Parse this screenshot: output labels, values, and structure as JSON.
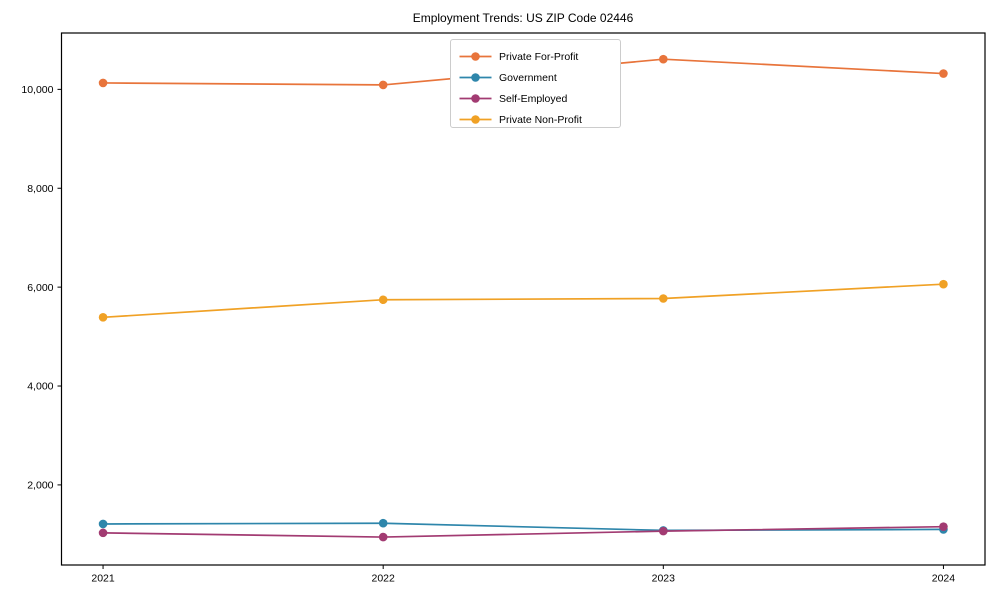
{
  "chart_data": {
    "type": "line",
    "title": "Employment Trends: US ZIP Code 02446",
    "x": [
      "2021",
      "2022",
      "2023",
      "2024"
    ],
    "series": [
      {
        "name": "Private For-Profit",
        "color": "#E8743B",
        "values": [
          10130,
          10090,
          10610,
          10320
        ]
      },
      {
        "name": "Government",
        "color": "#2E86AB",
        "values": [
          1210,
          1225,
          1080,
          1100
        ]
      },
      {
        "name": "Self-Employed",
        "color": "#A23B72",
        "values": [
          1030,
          945,
          1065,
          1155
        ]
      },
      {
        "name": "Private Non-Profit",
        "color": "#F0A125",
        "values": [
          5390,
          5745,
          5770,
          6060
        ]
      }
    ],
    "xlabel": "",
    "ylabel": "",
    "ylim": [
      380,
      11140
    ],
    "yticks": [
      2000,
      4000,
      6000,
      8000,
      10000
    ],
    "grid": false,
    "marker": "circle",
    "legend": {
      "position": "upper center",
      "background": "#ffffff",
      "border_color": "#cccccc"
    },
    "axis_color": "#000000",
    "text_color": "#000000",
    "background": "#ffffff"
  }
}
